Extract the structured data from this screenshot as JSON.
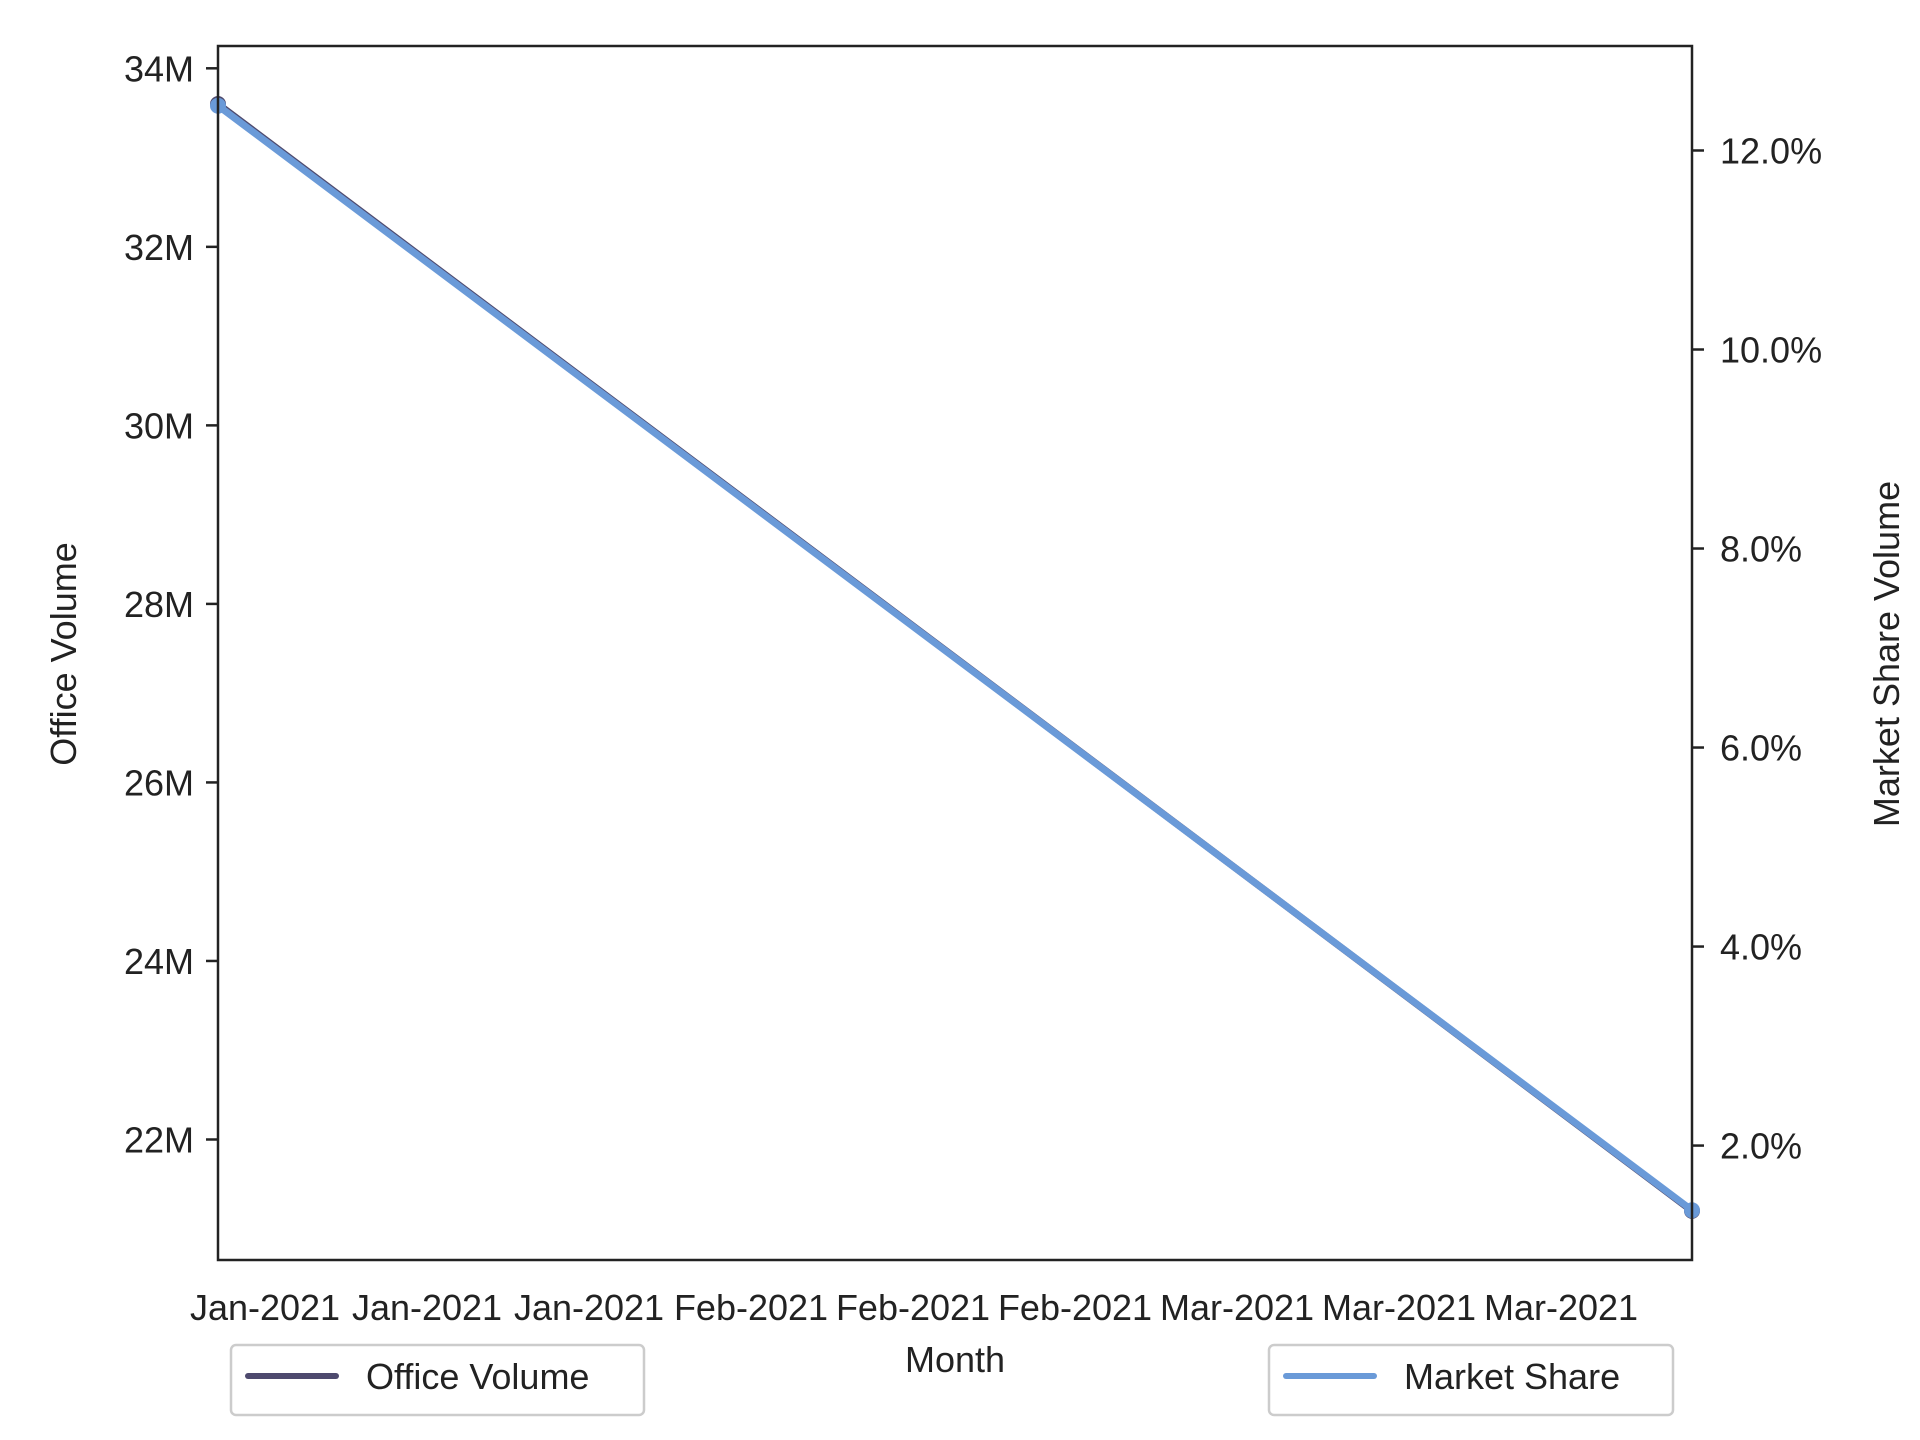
{
  "chart_data": {
    "type": "line",
    "title": "",
    "xlabel": "Month",
    "ylabel": "Office Volume",
    "ylabel_right": "Market Share Volume",
    "x_tick_labels": [
      "Jan-2021",
      "Jan-2021",
      "Jan-2021",
      "Feb-2021",
      "Feb-2021",
      "Feb-2021",
      "Mar-2021",
      "Mar-2021",
      "Mar-2021"
    ],
    "x": [
      "Jan-2021",
      "Mar-2021"
    ],
    "y_ticks_left": [
      22000000,
      24000000,
      26000000,
      28000000,
      30000000,
      32000000,
      34000000
    ],
    "y_tick_labels_left": [
      "22M",
      "24M",
      "26M",
      "28M",
      "30M",
      "32M",
      "34M"
    ],
    "y_ticks_right": [
      0.02,
      0.04,
      0.06,
      0.08,
      0.1,
      0.12
    ],
    "y_tick_labels_right": [
      "2.0%",
      "4.0%",
      "6.0%",
      "8.0%",
      "10.0%",
      "12.0%"
    ],
    "ylim_left": [
      20650000,
      34250000
    ],
    "ylim_right": [
      0.0085,
      0.1305
    ],
    "grid": false,
    "series": [
      {
        "name": "Office Volume",
        "axis": "left",
        "color": "#4e4a6e",
        "values": [
          33600000,
          21200000
        ]
      },
      {
        "name": "Market Share",
        "axis": "right",
        "color": "#6a9ad8",
        "values": [
          0.1245,
          0.0135
        ]
      }
    ],
    "legends": [
      {
        "series": "Office Volume",
        "placement": "bottom-left"
      },
      {
        "series": "Market Share",
        "placement": "bottom-right"
      }
    ]
  }
}
